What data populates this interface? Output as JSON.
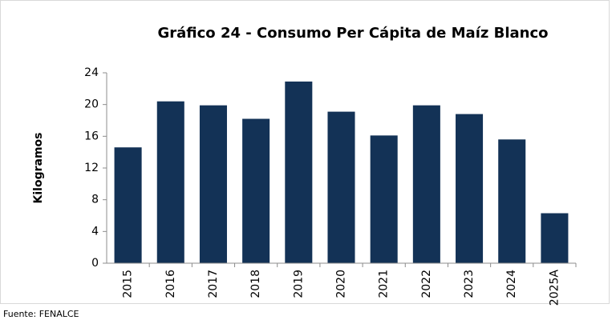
{
  "chart_data": {
    "type": "bar",
    "title": "Gráfico 24 - Consumo Per Cápita de Maíz Blanco",
    "y_label": "Kilogramos",
    "source": "Fuente: FENALCE",
    "categories": [
      "2015",
      "2016",
      "2017",
      "2018",
      "2019",
      "2020",
      "2021",
      "2022",
      "2023",
      "2024",
      "2025A"
    ],
    "values": [
      14.6,
      20.4,
      19.9,
      18.2,
      22.9,
      19.1,
      16.1,
      19.9,
      18.8,
      15.6,
      6.3
    ],
    "color": "#133256",
    "ylim": [
      0,
      24
    ],
    "yticks": [
      0,
      4,
      8,
      12,
      16,
      20,
      24
    ],
    "grid": false
  }
}
